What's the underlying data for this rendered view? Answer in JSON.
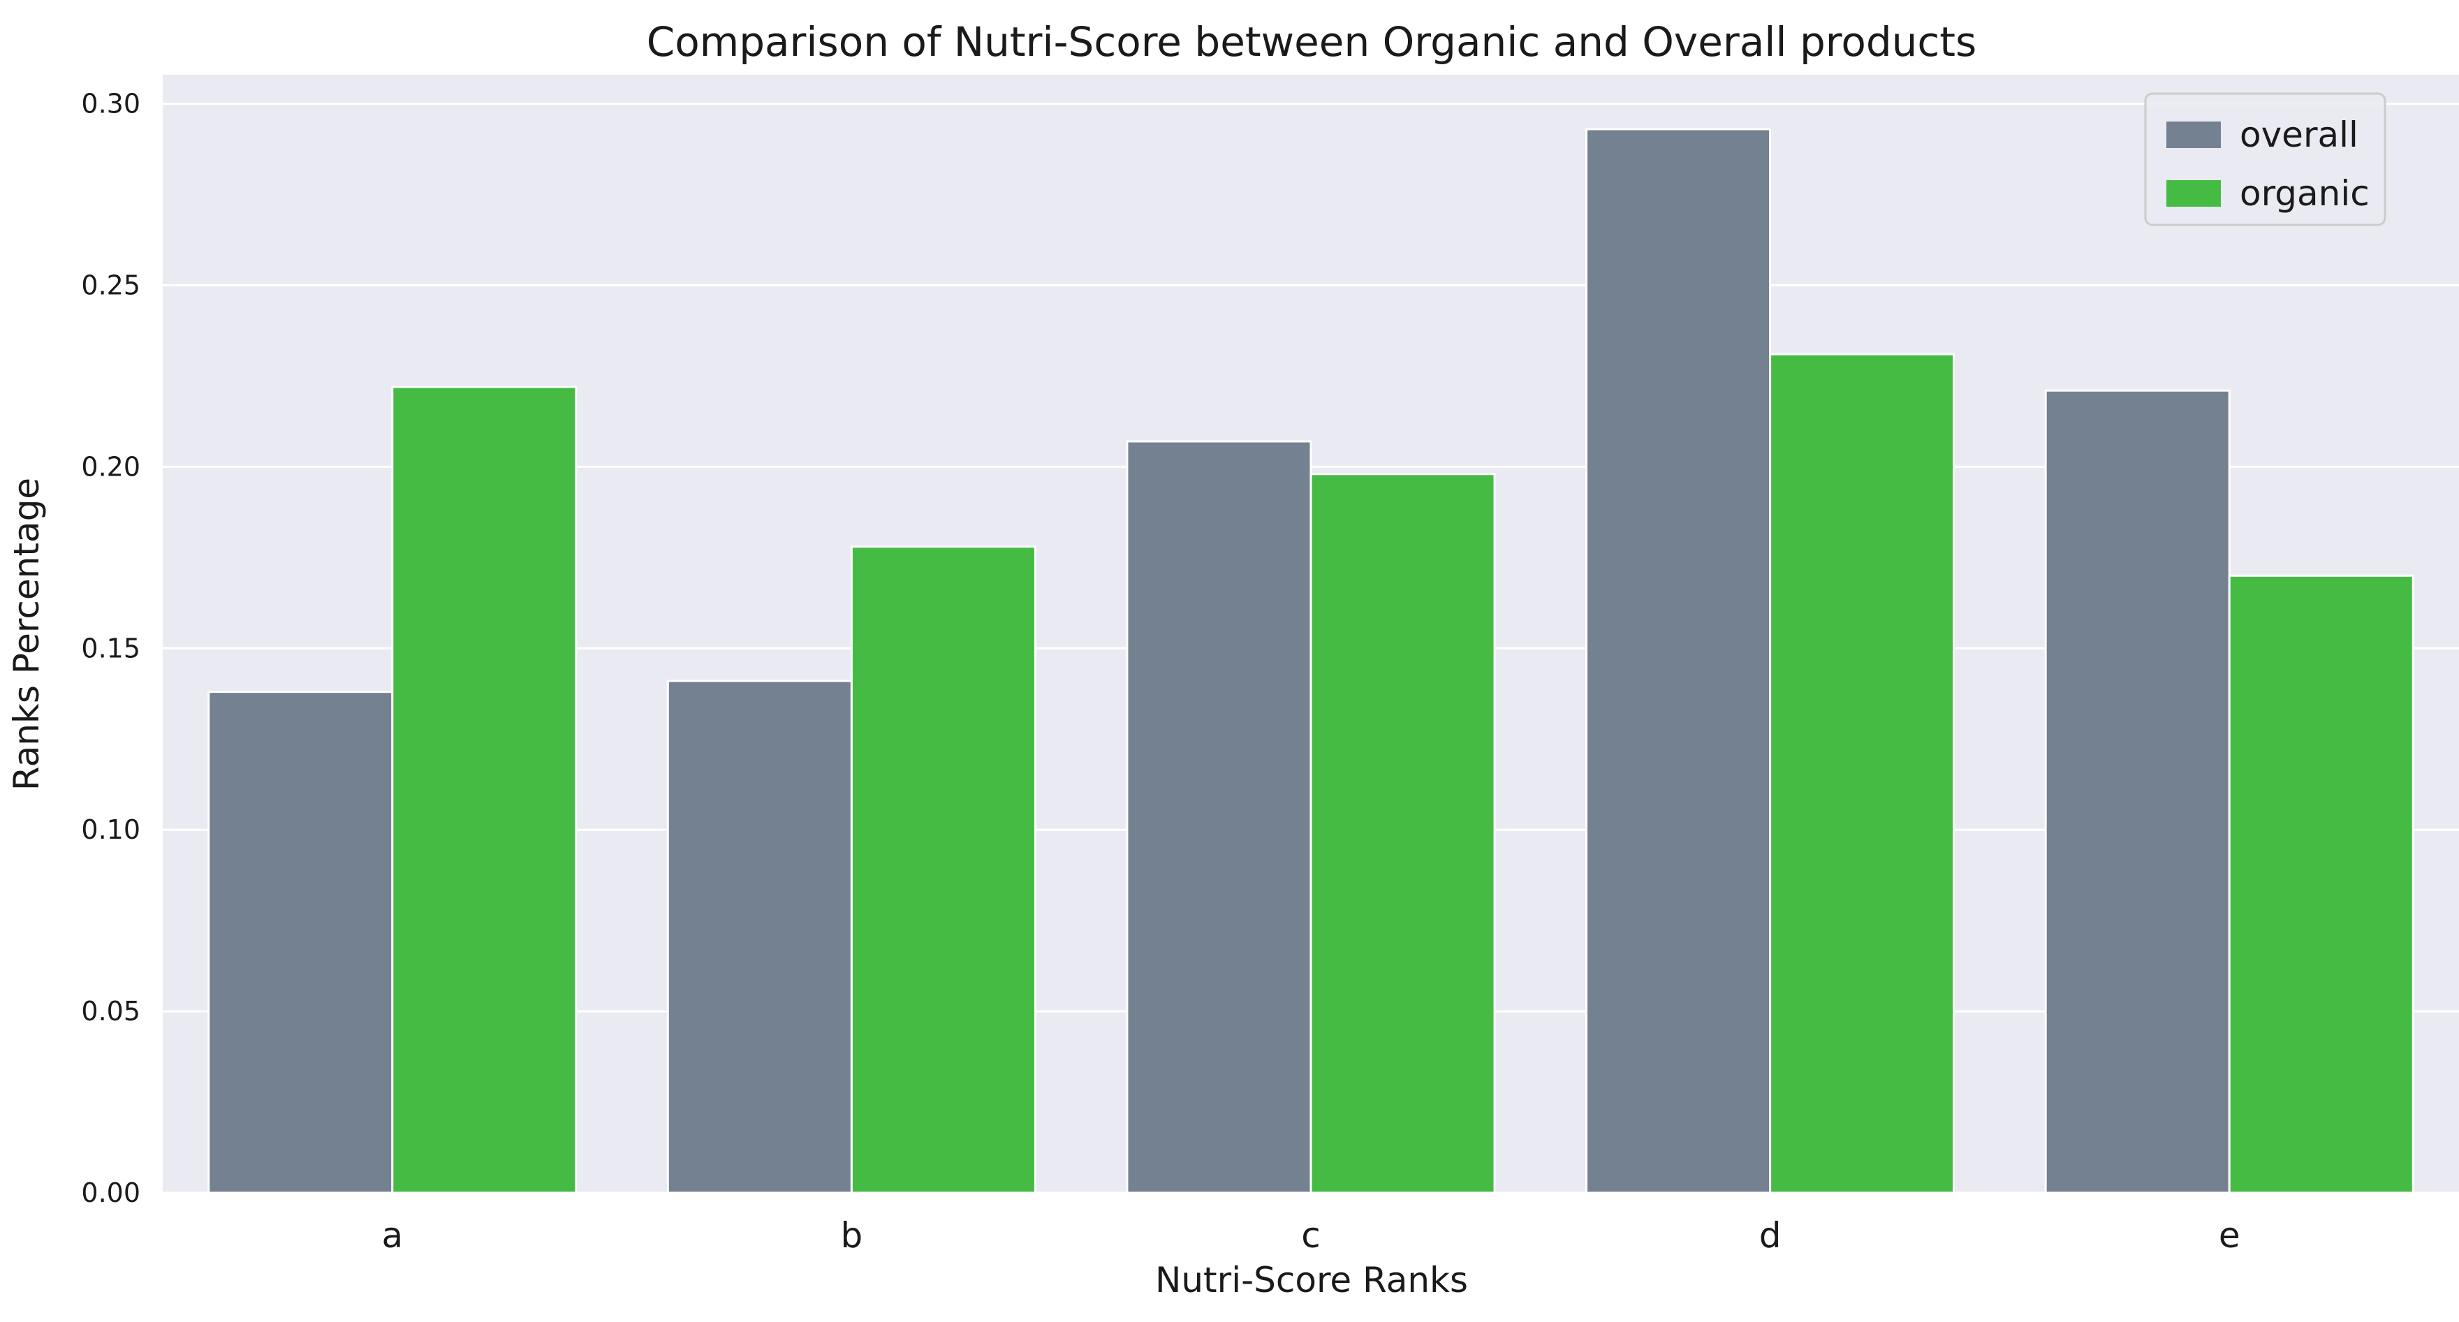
{
  "chart_data": {
    "type": "bar",
    "title": "Comparison of Nutri-Score between Organic and Overall products",
    "xlabel": "Nutri-Score Ranks",
    "ylabel": "Ranks Percentage",
    "categories": [
      "a",
      "b",
      "c",
      "d",
      "e"
    ],
    "series": [
      {
        "name": "overall",
        "color": "#748190",
        "values": [
          0.138,
          0.141,
          0.207,
          0.293,
          0.221
        ]
      },
      {
        "name": "organic",
        "color": "#46bb44",
        "values": [
          0.222,
          0.178,
          0.198,
          0.231,
          0.17
        ]
      }
    ],
    "ylim": [
      0,
      0.308
    ],
    "yticks": [
      "0.00",
      "0.05",
      "0.10",
      "0.15",
      "0.20",
      "0.25",
      "0.30"
    ],
    "grid": true,
    "legend_position": "top-right",
    "background_color": "#eaeaf2",
    "grid_color": "#ffffff"
  }
}
